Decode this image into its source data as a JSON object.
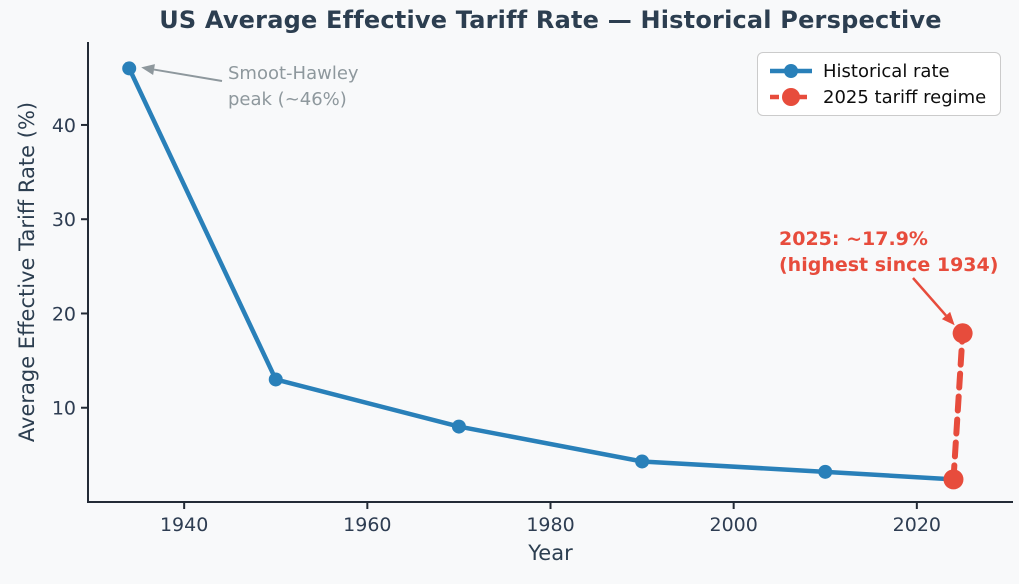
{
  "chart_data": {
    "type": "line",
    "title": "US Average Effective Tariff Rate — Historical Perspective",
    "xlabel": "Year",
    "ylabel": "Average Effective Tariff Rate (%)",
    "xlim": [
      1929.5,
      2030.5
    ],
    "ylim": [
      0,
      48.8
    ],
    "xticks": [
      1940,
      1960,
      1980,
      2000,
      2020
    ],
    "yticks": [
      10,
      20,
      30,
      40
    ],
    "grid": false,
    "legend_position": "upper right",
    "series": [
      {
        "name": "Historical rate",
        "color": "#2980b9",
        "style": "solid",
        "marker": "circle",
        "x": [
          1934,
          1950,
          1970,
          1990,
          2010,
          2024
        ],
        "y": [
          46,
          13,
          8,
          4.3,
          3.2,
          2.4
        ]
      },
      {
        "name": "2025 tariff regime",
        "color": "#e74c3c",
        "style": "dashed",
        "marker": "circle",
        "x": [
          2024,
          2025
        ],
        "y": [
          2.4,
          17.9
        ]
      }
    ],
    "annotations": [
      {
        "id": "smoot-hawley",
        "lines": [
          "Smoot-Hawley",
          "peak (~46%)"
        ],
        "color": "#8e989d",
        "target": {
          "x": 1934,
          "y": 46
        }
      },
      {
        "id": "tariff-2025",
        "lines": [
          "2025: ~17.9%",
          "(highest since 1934)"
        ],
        "color": "#e74c3c",
        "target": {
          "x": 2025,
          "y": 17.9
        }
      }
    ],
    "colors": {
      "background": "#f8f9fa",
      "text": "#2c3e50",
      "axis": "#232b36",
      "accent_blue": "#2980b9",
      "accent_red": "#e74c3c"
    }
  }
}
